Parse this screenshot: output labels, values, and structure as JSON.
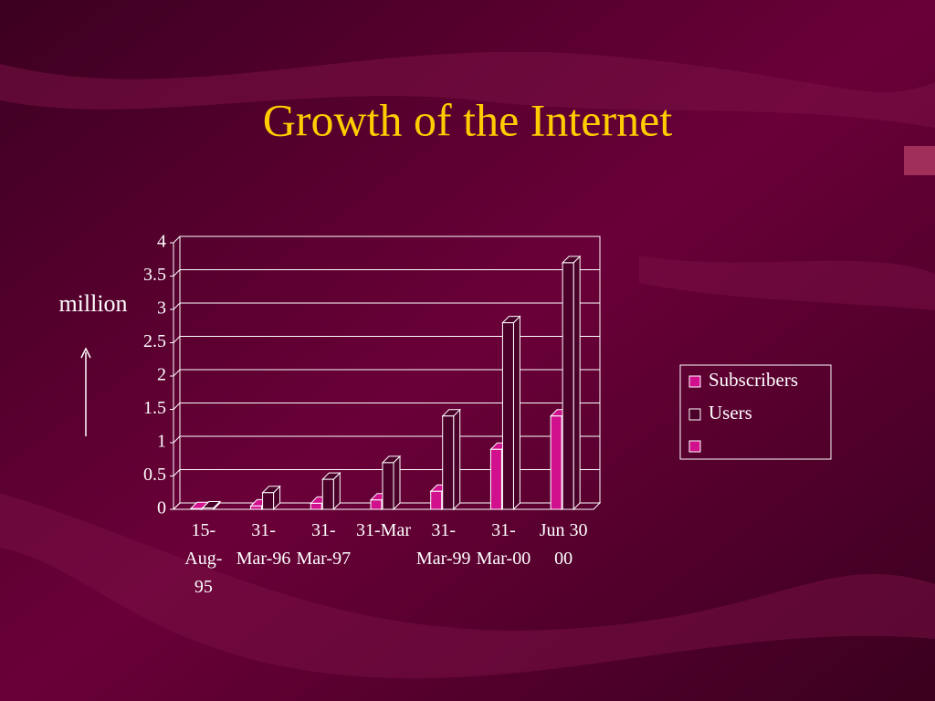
{
  "chart_data": {
    "type": "bar3d",
    "title": "Growth of the Internet",
    "y_label": "million",
    "categories": [
      "15-Aug-95",
      "31-Mar-96",
      "31-Mar-97",
      "31-Mar",
      "31-Mar-99",
      "31-Mar-00",
      "Jun 30 00"
    ],
    "series": [
      {
        "name": "Subscribers",
        "color": "#d0108c",
        "values": [
          0.01,
          0.05,
          0.09,
          0.14,
          0.27,
          0.9,
          1.4
        ]
      },
      {
        "name": "Users",
        "color": "#4a0028",
        "values": [
          0.02,
          0.25,
          0.45,
          0.7,
          1.4,
          2.8,
          3.7
        ]
      }
    ],
    "ylim": [
      0,
      4
    ],
    "yticks": [
      0,
      0.5,
      1,
      1.5,
      2,
      2.5,
      3,
      3.5,
      4
    ],
    "grid": true
  }
}
